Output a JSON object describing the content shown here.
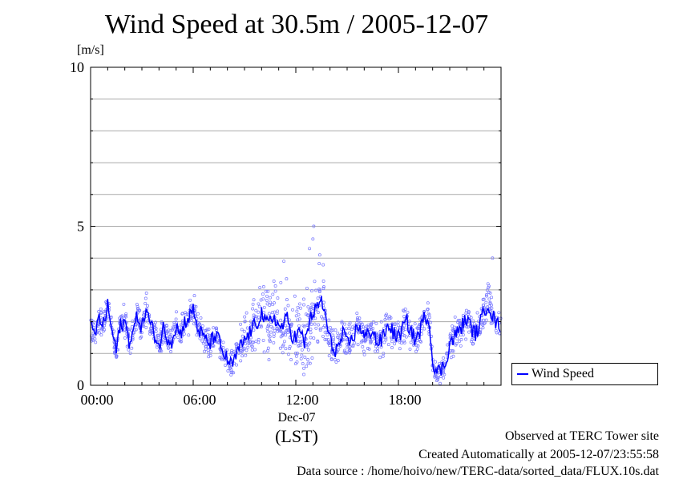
{
  "chart_data": {
    "type": "scatter",
    "title": "Wind Speed at 30.5m / 2005-12-07",
    "ylabel": "[m/s]",
    "ylim": [
      0,
      10
    ],
    "xlim_hours": [
      0,
      24
    ],
    "y_ticks": [
      "0",
      "5",
      "10"
    ],
    "x_ticks": [
      "00:00",
      "06:00",
      "12:00",
      "18:00"
    ],
    "x_sublabel": "Dec-07",
    "x_unit_label": "(LST)",
    "legend": {
      "label": "Wind Speed",
      "placement": "right"
    },
    "grid_y": true,
    "colors": {
      "series": "#0000ff",
      "points": "#7777ff",
      "grid": "#aaaaaa"
    },
    "series": [
      {
        "name": "Wind Speed",
        "x": [
          0,
          0.25,
          0.5,
          0.75,
          1,
          1.25,
          1.5,
          1.75,
          2,
          2.25,
          2.5,
          2.75,
          3,
          3.25,
          3.5,
          3.75,
          4,
          4.25,
          4.5,
          4.75,
          5,
          5.25,
          5.5,
          5.75,
          6,
          6.25,
          6.5,
          6.75,
          7,
          7.25,
          7.5,
          7.75,
          8,
          8.25,
          8.5,
          8.75,
          9,
          9.25,
          9.5,
          9.75,
          10,
          10.25,
          10.5,
          10.75,
          11,
          11.25,
          11.5,
          11.75,
          12,
          12.25,
          12.5,
          12.75,
          13,
          13.25,
          13.5,
          13.75,
          14,
          14.25,
          14.5,
          14.75,
          15,
          15.25,
          15.5,
          15.75,
          16,
          16.25,
          16.5,
          16.75,
          17,
          17.25,
          17.5,
          17.75,
          18,
          18.25,
          18.5,
          18.75,
          19,
          19.25,
          19.5,
          19.75,
          20,
          20.25,
          20.5,
          20.75,
          21,
          21.25,
          21.5,
          21.75,
          22,
          22.25,
          22.5,
          22.75,
          23,
          23.25,
          23.5,
          23.75
        ],
        "y": [
          1.8,
          1.6,
          2.1,
          1.9,
          2.5,
          1.7,
          1.1,
          1.9,
          2.0,
          1.4,
          1.7,
          2.2,
          1.8,
          2.4,
          1.9,
          1.6,
          1.2,
          1.8,
          1.5,
          1.4,
          1.9,
          1.6,
          2.0,
          2.1,
          2.4,
          1.8,
          1.6,
          1.4,
          1.3,
          1.6,
          1.4,
          1.0,
          0.8,
          0.6,
          0.9,
          1.2,
          1.4,
          1.6,
          1.8,
          2.0,
          2.3,
          1.9,
          2.0,
          2.2,
          1.8,
          1.9,
          2.1,
          1.6,
          1.5,
          1.7,
          1.3,
          1.9,
          2.3,
          2.4,
          2.7,
          2.1,
          1.4,
          1.1,
          1.2,
          1.6,
          1.3,
          1.4,
          1.7,
          1.9,
          1.5,
          1.6,
          1.8,
          1.3,
          1.4,
          1.7,
          1.9,
          1.6,
          1.5,
          1.8,
          2.0,
          1.7,
          1.4,
          1.7,
          2.1,
          2.2,
          0.8,
          0.4,
          0.5,
          0.7,
          1.3,
          1.5,
          1.7,
          1.9,
          2.1,
          1.8,
          1.6,
          1.9,
          2.3,
          2.6,
          2.2,
          1.9
        ],
        "spread": [
          0.4,
          0.4,
          0.4,
          0.4,
          0.5,
          0.4,
          0.4,
          0.4,
          0.5,
          0.4,
          0.4,
          0.4,
          0.4,
          0.5,
          0.4,
          0.4,
          0.4,
          0.4,
          0.4,
          0.4,
          0.4,
          0.4,
          0.4,
          0.4,
          0.5,
          0.4,
          0.4,
          0.4,
          0.4,
          0.4,
          0.4,
          0.4,
          0.4,
          0.4,
          0.5,
          0.6,
          0.7,
          0.8,
          0.9,
          0.9,
          1.0,
          1.0,
          1.0,
          1.0,
          1.0,
          1.0,
          1.0,
          1.0,
          1.0,
          1.0,
          1.0,
          1.0,
          1.0,
          1.2,
          1.2,
          0.9,
          0.6,
          0.5,
          0.5,
          0.5,
          0.5,
          0.5,
          0.5,
          0.5,
          0.5,
          0.5,
          0.5,
          0.5,
          0.5,
          0.5,
          0.5,
          0.5,
          0.5,
          0.5,
          0.5,
          0.5,
          0.4,
          0.4,
          0.4,
          0.4,
          0.4,
          0.3,
          0.3,
          0.3,
          0.4,
          0.5,
          0.5,
          0.5,
          0.5,
          0.5,
          0.5,
          0.5,
          0.6,
          0.6,
          0.5,
          0.5
        ]
      }
    ]
  },
  "footer": {
    "site": "Observed at TERC Tower site",
    "created": "Created Automatically at 2005-12-07/23:55:58",
    "source": "Data source : /home/hoivo/new/TERC-data/sorted_data/FLUX.10s.dat"
  }
}
